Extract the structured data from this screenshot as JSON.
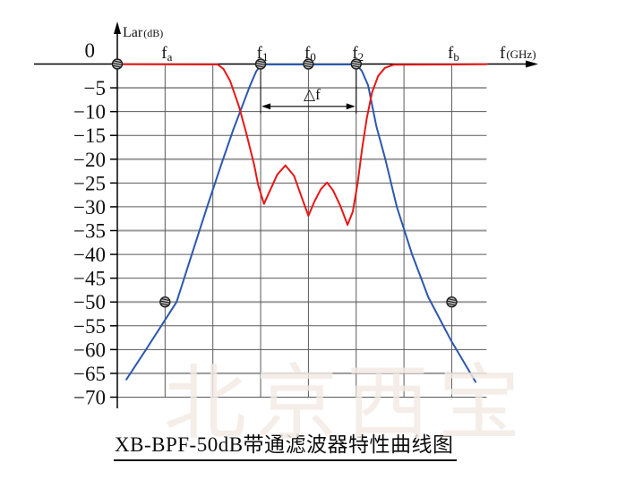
{
  "title": {
    "text": "XB-BPF-50dB带通滤波器特性曲线图"
  },
  "watermark": {
    "text": "北京西宝"
  },
  "chart_data": {
    "type": "line",
    "title": "XB-BPF-50dB带通滤波器特性曲线图",
    "grid": "on",
    "y_axis": {
      "label_main": "Lar",
      "label_unit": "(dB)",
      "ticks": [
        0,
        -5,
        -10,
        -15,
        -20,
        -25,
        -30,
        -35,
        -40,
        -45,
        -50,
        -55,
        -60,
        -65,
        -70
      ],
      "range": [
        0,
        -70
      ],
      "accent_ticks": [
        -5,
        -20,
        -35,
        -50,
        -65
      ]
    },
    "x_axis": {
      "label_main": "f",
      "label_unit": "(GHz)",
      "tick_labels": [
        {
          "u": 1,
          "main": "f",
          "sub": "a"
        },
        {
          "u": 3,
          "main": "f",
          "sub": "1"
        },
        {
          "u": 4,
          "main": "f",
          "sub": "0"
        },
        {
          "u": 5,
          "main": "f",
          "sub": "2"
        },
        {
          "u": 7,
          "main": "f",
          "sub": "b"
        }
      ],
      "gridlines_u": [
        1,
        2,
        3,
        4,
        5,
        6,
        7
      ]
    },
    "series": [
      {
        "name": "insertion-loss-curve",
        "color": "#2b58ad",
        "points": [
          [
            0.19,
            -66.3
          ],
          [
            0.6,
            -60
          ],
          [
            0.92,
            -55
          ],
          [
            1.24,
            -50
          ],
          [
            1.56,
            -40
          ],
          [
            1.88,
            -30
          ],
          [
            2.18,
            -21
          ],
          [
            2.42,
            -14
          ],
          [
            2.61,
            -9
          ],
          [
            2.78,
            -4.5
          ],
          [
            2.91,
            -1.5
          ],
          [
            3.0,
            -0.35
          ],
          [
            3.1,
            -0.1
          ],
          [
            4.95,
            -0.1
          ],
          [
            5.03,
            -0.35
          ],
          [
            5.12,
            -1.5
          ],
          [
            5.25,
            -4.5
          ],
          [
            5.42,
            -13
          ],
          [
            5.61,
            -20
          ],
          [
            5.85,
            -30
          ],
          [
            6.17,
            -40
          ],
          [
            6.51,
            -49
          ],
          [
            6.98,
            -58
          ],
          [
            7.5,
            -66.8
          ]
        ]
      },
      {
        "name": "return-loss-curve",
        "color": "#e81717",
        "points": [
          [
            0,
            -0.05
          ],
          [
            2.1,
            -0.1
          ],
          [
            2.22,
            -1
          ],
          [
            2.36,
            -3.5
          ],
          [
            2.55,
            -9
          ],
          [
            2.7,
            -14.5
          ],
          [
            2.86,
            -21
          ],
          [
            2.95,
            -25.5
          ],
          [
            3.07,
            -29.4
          ],
          [
            3.2,
            -26.5
          ],
          [
            3.35,
            -23.2
          ],
          [
            3.52,
            -21.3
          ],
          [
            3.7,
            -23.5
          ],
          [
            3.87,
            -28.3
          ],
          [
            4.0,
            -31.9
          ],
          [
            4.13,
            -28.8
          ],
          [
            4.26,
            -26.3
          ],
          [
            4.39,
            -24.9
          ],
          [
            4.52,
            -26.6
          ],
          [
            4.67,
            -29.8
          ],
          [
            4.82,
            -33.8
          ],
          [
            4.93,
            -31
          ],
          [
            5.03,
            -25
          ],
          [
            5.12,
            -18
          ],
          [
            5.22,
            -11.5
          ],
          [
            5.33,
            -6
          ],
          [
            5.46,
            -2.5
          ],
          [
            5.6,
            -0.8
          ],
          [
            5.78,
            -0.15
          ],
          [
            7.73,
            -0.05
          ]
        ]
      }
    ],
    "markers": {
      "name": "spec-point",
      "color": "#1d1d1d",
      "points": [
        [
          0,
          0
        ],
        [
          3,
          0
        ],
        [
          4,
          0
        ],
        [
          5,
          0
        ],
        [
          1,
          -50
        ],
        [
          7,
          -50
        ]
      ]
    },
    "annotation": {
      "text": "△f",
      "from_u": 3,
      "to_u": 5,
      "db": -8.9
    },
    "colors": {
      "grid": "#5a5a5a",
      "grid_accent": "#9a9a9a",
      "axis": "#000000"
    }
  }
}
